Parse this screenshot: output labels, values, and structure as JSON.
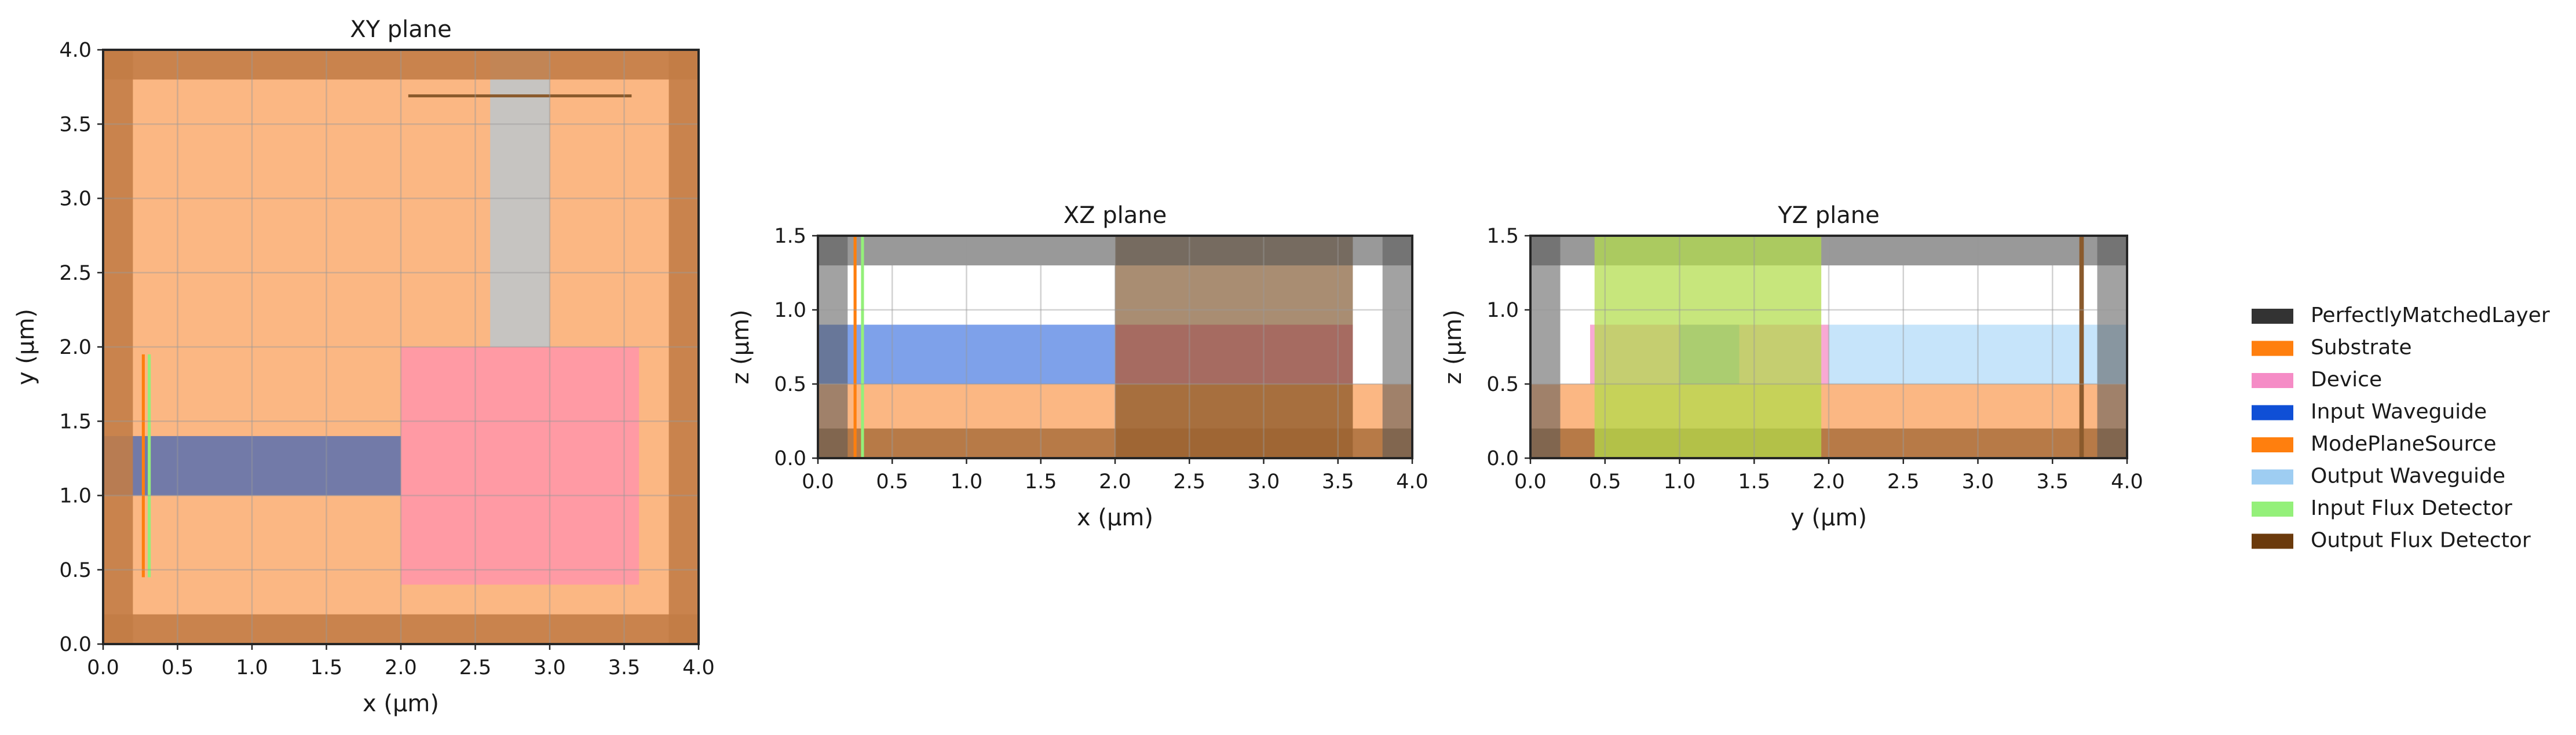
{
  "chart_data": {
    "type": "layout",
    "legend": {
      "placement": "right",
      "items": [
        {
          "label": "PerfectlyMatchedLayer",
          "color": "#333333"
        },
        {
          "label": "Substrate",
          "color": "#ff7f0e"
        },
        {
          "label": "Device",
          "color": "#f58cc6"
        },
        {
          "label": "Input Waveguide",
          "color": "#0f4fd6"
        },
        {
          "label": "ModePlaneSource",
          "color": "#ff7f0e"
        },
        {
          "label": "Output Waveguide",
          "color": "#9ecdf2"
        },
        {
          "label": "Input Flux Detector",
          "color": "#94f07a"
        },
        {
          "label": "Output Flux Detector",
          "color": "#6b3a0c"
        }
      ]
    },
    "panels": [
      {
        "title": "XY plane",
        "xlabel": "x (µm)",
        "ylabel": "y (µm)",
        "xlim": [
          0,
          4
        ],
        "ylim": [
          0,
          4
        ],
        "xticks": [
          "0.0",
          "0.5",
          "1.0",
          "1.5",
          "2.0",
          "2.5",
          "3.0",
          "3.5",
          "4.0"
        ],
        "yticks": [
          "0.0",
          "0.5",
          "1.0",
          "1.5",
          "2.0",
          "2.5",
          "3.0",
          "3.5",
          "4.0"
        ],
        "grid": true,
        "shapes": [
          {
            "type": "rect",
            "x0": 0,
            "x1": 4,
            "y0": 0,
            "y1": 4,
            "color": "#fbb783",
            "opacity": 1
          },
          {
            "type": "rect",
            "x0": 2.6,
            "x1": 3.0,
            "y0": 2.0,
            "y1": 4.0,
            "color": "#c6c4c1",
            "opacity": 1
          },
          {
            "type": "rect",
            "x0": 0,
            "x1": 2.0,
            "y0": 1.0,
            "y1": 1.4,
            "color": "#727aa8",
            "opacity": 1
          },
          {
            "type": "rect",
            "x0": 2.0,
            "x1": 3.6,
            "y0": 0.4,
            "y1": 2.0,
            "color": "#ff9aa4",
            "opacity": 1
          },
          {
            "type": "rect",
            "x0": 0,
            "x1": 4,
            "y0": 0,
            "y1": 0.2,
            "color": "#c17c46",
            "opacity": 0.88
          },
          {
            "type": "rect",
            "x0": 0,
            "x1": 4,
            "y0": 3.8,
            "y1": 4.0,
            "color": "#c17c46",
            "opacity": 0.88
          },
          {
            "type": "rect",
            "x0": 0,
            "x1": 0.2,
            "y0": 0,
            "y1": 4,
            "color": "#c17c46",
            "opacity": 0.88
          },
          {
            "type": "rect",
            "x0": 3.8,
            "x1": 4.0,
            "y0": 0,
            "y1": 4,
            "color": "#c17c46",
            "opacity": 0.88
          },
          {
            "type": "rect",
            "x0": 0.26,
            "x1": 0.28,
            "y0": 0.45,
            "y1": 1.95,
            "color": "#ff7f0e",
            "opacity": 1
          },
          {
            "type": "rect",
            "x0": 0.3,
            "x1": 0.32,
            "y0": 0.45,
            "y1": 1.95,
            "color": "#94f07a",
            "opacity": 1
          },
          {
            "type": "rect",
            "x0": 2.05,
            "x1": 3.55,
            "y0": 3.68,
            "y1": 3.7,
            "color": "#8a5a2c",
            "opacity": 1
          }
        ]
      },
      {
        "title": "XZ plane",
        "xlabel": "x (µm)",
        "ylabel": "z (µm)",
        "xlim": [
          0,
          4
        ],
        "ylim": [
          0,
          1.5
        ],
        "xticks": [
          "0.0",
          "0.5",
          "1.0",
          "1.5",
          "2.0",
          "2.5",
          "3.0",
          "3.5",
          "4.0"
        ],
        "yticks": [
          "0.0",
          "0.5",
          "1.0",
          "1.5"
        ],
        "grid": true,
        "shapes": [
          {
            "type": "rect",
            "x0": 0,
            "x1": 4,
            "y0": 0,
            "y1": 0.5,
            "color": "#fbb783",
            "opacity": 1
          },
          {
            "type": "rect",
            "x0": 0,
            "x1": 2.0,
            "y0": 0.5,
            "y1": 0.9,
            "color": "#7ea1ea",
            "opacity": 1
          },
          {
            "type": "rect",
            "x0": 2.0,
            "x1": 3.6,
            "y0": 0.5,
            "y1": 0.9,
            "color": "#f58cc6",
            "opacity": 0.7
          },
          {
            "type": "rect",
            "x0": 2.0,
            "x1": 3.6,
            "y0": 0,
            "y1": 1.5,
            "color": "#6b3a0c",
            "opacity": 0.58
          },
          {
            "type": "rect",
            "x0": 0,
            "x1": 4,
            "y0": 0,
            "y1": 0.2,
            "color": "#9c6330",
            "opacity": 0.72
          },
          {
            "type": "rect",
            "x0": 0,
            "x1": 4,
            "y0": 1.3,
            "y1": 1.5,
            "color": "#555555",
            "opacity": 0.6
          },
          {
            "type": "rect",
            "x0": 0,
            "x1": 0.2,
            "y0": 0,
            "y1": 1.5,
            "color": "#555555",
            "opacity": 0.55
          },
          {
            "type": "rect",
            "x0": 3.8,
            "x1": 4.0,
            "y0": 0,
            "y1": 1.5,
            "color": "#555555",
            "opacity": 0.55
          },
          {
            "type": "rect",
            "x0": 0.24,
            "x1": 0.26,
            "y0": 0,
            "y1": 1.5,
            "color": "#ff7f0e",
            "opacity": 1
          },
          {
            "type": "rect",
            "x0": 0.29,
            "x1": 0.31,
            "y0": 0,
            "y1": 1.5,
            "color": "#94f07a",
            "opacity": 1
          }
        ]
      },
      {
        "title": "YZ plane",
        "xlabel": "y (µm)",
        "ylabel": "z (µm)",
        "xlim": [
          0,
          4
        ],
        "ylim": [
          0,
          1.5
        ],
        "xticks": [
          "0.0",
          "0.5",
          "1.0",
          "1.5",
          "2.0",
          "2.5",
          "3.0",
          "3.5",
          "4.0"
        ],
        "yticks": [
          "0.0",
          "0.5",
          "1.0",
          "1.5"
        ],
        "grid": true,
        "shapes": [
          {
            "type": "rect",
            "x0": 0,
            "x1": 4,
            "y0": 0,
            "y1": 0.5,
            "color": "#fbb783",
            "opacity": 1
          },
          {
            "type": "rect",
            "x0": 0.4,
            "x1": 2.0,
            "y0": 0.5,
            "y1": 0.9,
            "color": "#f58cc6",
            "opacity": 0.75
          },
          {
            "type": "rect",
            "x0": 2.0,
            "x1": 4.0,
            "y0": 0.5,
            "y1": 0.9,
            "color": "#c6e4fa",
            "opacity": 1
          },
          {
            "type": "rect",
            "x0": 1.0,
            "x1": 1.4,
            "y0": 0.5,
            "y1": 0.9,
            "color": "#8fa6d4",
            "opacity": 0.9
          },
          {
            "type": "rect",
            "x0": 0,
            "x1": 4,
            "y0": 0,
            "y1": 0.2,
            "color": "#9c6330",
            "opacity": 0.72
          },
          {
            "type": "rect",
            "x0": 0,
            "x1": 4,
            "y0": 1.3,
            "y1": 1.5,
            "color": "#555555",
            "opacity": 0.6
          },
          {
            "type": "rect",
            "x0": 0,
            "x1": 0.2,
            "y0": 0,
            "y1": 1.5,
            "color": "#555555",
            "opacity": 0.55
          },
          {
            "type": "rect",
            "x0": 3.8,
            "x1": 4.0,
            "y0": 0,
            "y1": 1.5,
            "color": "#555555",
            "opacity": 0.55
          },
          {
            "type": "rect",
            "x0": 0.43,
            "x1": 1.95,
            "y0": 0,
            "y1": 1.5,
            "color": "#b2dc4a",
            "opacity": 0.72
          },
          {
            "type": "rect",
            "x0": 3.68,
            "x1": 3.71,
            "y0": 0,
            "y1": 1.5,
            "color": "#8a5a2c",
            "opacity": 1
          }
        ]
      }
    ]
  }
}
